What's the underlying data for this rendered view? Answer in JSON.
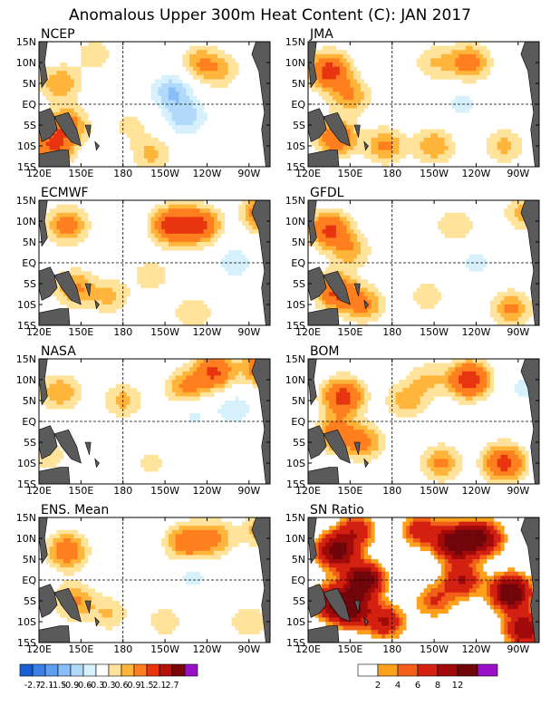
{
  "title": "Anomalous Upper 300m Heat Content (C): JAN 2017",
  "chart_data": {
    "type": "heatmap",
    "title": "Anomalous Upper 300m Heat Content (C): JAN 2017",
    "x_ticks": [
      "120E",
      "150E",
      "180",
      "150W",
      "120W",
      "90W"
    ],
    "y_ticks": [
      "15N",
      "10N",
      "5N",
      "EQ",
      "5S",
      "10S",
      "15S"
    ],
    "x_range_deg_east": [
      120,
      285
    ],
    "y_range_deg_north": [
      -15,
      15
    ],
    "panels": [
      {
        "name": "NCEP",
        "blobs": [
          {
            "lon": 135,
            "lat": 5,
            "value": 0.9
          },
          {
            "lon": 140,
            "lat": -5,
            "value": 1.2
          },
          {
            "lon": 130,
            "lat": -10,
            "value": 1.5
          },
          {
            "lon": 215,
            "lat": 3,
            "value": -0.9
          },
          {
            "lon": 225,
            "lat": -3,
            "value": -0.8
          },
          {
            "lon": 235,
            "lat": 10,
            "value": 0.8
          },
          {
            "lon": 200,
            "lat": -12,
            "value": 0.7
          },
          {
            "lon": 160,
            "lat": 12,
            "value": 0.5
          },
          {
            "lon": 250,
            "lat": 8,
            "value": 0.6
          },
          {
            "lon": 185,
            "lat": -5,
            "value": 0.4
          }
        ]
      },
      {
        "name": "JMA",
        "blobs": [
          {
            "lon": 135,
            "lat": 8,
            "value": 1.8
          },
          {
            "lon": 150,
            "lat": 2,
            "value": 0.9
          },
          {
            "lon": 140,
            "lat": -8,
            "value": 1.5
          },
          {
            "lon": 175,
            "lat": -10,
            "value": 1.0
          },
          {
            "lon": 210,
            "lat": -10,
            "value": 0.9
          },
          {
            "lon": 235,
            "lat": 10,
            "value": 1.2
          },
          {
            "lon": 210,
            "lat": 10,
            "value": 0.6
          },
          {
            "lon": 230,
            "lat": 0,
            "value": -0.4
          },
          {
            "lon": 260,
            "lat": -10,
            "value": 0.7
          }
        ]
      },
      {
        "name": "ECMWF",
        "blobs": [
          {
            "lon": 140,
            "lat": 9,
            "value": 1.2
          },
          {
            "lon": 215,
            "lat": 9,
            "value": 1.8
          },
          {
            "lon": 235,
            "lat": 9,
            "value": 1.6
          },
          {
            "lon": 145,
            "lat": -6,
            "value": 1.0
          },
          {
            "lon": 170,
            "lat": -8,
            "value": 0.7
          },
          {
            "lon": 200,
            "lat": -3,
            "value": 0.5
          },
          {
            "lon": 260,
            "lat": 0,
            "value": -0.5
          },
          {
            "lon": 280,
            "lat": 12,
            "value": 1.5
          },
          {
            "lon": 230,
            "lat": -12,
            "value": 0.6
          }
        ]
      },
      {
        "name": "GFDL",
        "blobs": [
          {
            "lon": 135,
            "lat": 8,
            "value": 1.6
          },
          {
            "lon": 150,
            "lat": 3,
            "value": 0.8
          },
          {
            "lon": 140,
            "lat": -7,
            "value": 1.6
          },
          {
            "lon": 160,
            "lat": -10,
            "value": 1.0
          },
          {
            "lon": 225,
            "lat": 9,
            "value": 0.6
          },
          {
            "lon": 265,
            "lat": -11,
            "value": 1.0
          },
          {
            "lon": 205,
            "lat": -8,
            "value": 0.5
          },
          {
            "lon": 240,
            "lat": 0,
            "value": -0.4
          },
          {
            "lon": 275,
            "lat": 12,
            "value": 0.8
          }
        ]
      },
      {
        "name": "NASA",
        "blobs": [
          {
            "lon": 135,
            "lat": 7,
            "value": 0.9
          },
          {
            "lon": 225,
            "lat": 8,
            "value": 1.0
          },
          {
            "lon": 245,
            "lat": 12,
            "value": 1.6
          },
          {
            "lon": 180,
            "lat": 5,
            "value": 0.7
          },
          {
            "lon": 230,
            "lat": 2,
            "value": -0.4
          },
          {
            "lon": 260,
            "lat": 3,
            "value": -0.5
          },
          {
            "lon": 125,
            "lat": -8,
            "value": 0.6
          },
          {
            "lon": 200,
            "lat": -10,
            "value": 0.4
          },
          {
            "lon": 280,
            "lat": 13,
            "value": 1.5
          }
        ]
      },
      {
        "name": "BOM",
        "blobs": [
          {
            "lon": 145,
            "lat": 6,
            "value": 1.8
          },
          {
            "lon": 140,
            "lat": -3,
            "value": 1.2
          },
          {
            "lon": 160,
            "lat": -5,
            "value": 1.0
          },
          {
            "lon": 235,
            "lat": 10,
            "value": 2.0
          },
          {
            "lon": 260,
            "lat": -10,
            "value": 1.8
          },
          {
            "lon": 215,
            "lat": -10,
            "value": 1.0
          },
          {
            "lon": 190,
            "lat": 5,
            "value": 0.8
          },
          {
            "lon": 205,
            "lat": 10,
            "value": 0.6
          },
          {
            "lon": 275,
            "lat": 8,
            "value": -0.4
          }
        ]
      },
      {
        "name": "ENS. Mean",
        "blobs": [
          {
            "lon": 140,
            "lat": 7,
            "value": 1.3
          },
          {
            "lon": 225,
            "lat": 9,
            "value": 1.3
          },
          {
            "lon": 245,
            "lat": 10,
            "value": 1.0
          },
          {
            "lon": 145,
            "lat": -5,
            "value": 1.0
          },
          {
            "lon": 170,
            "lat": -8,
            "value": 0.6
          },
          {
            "lon": 210,
            "lat": -10,
            "value": 0.5
          },
          {
            "lon": 230,
            "lat": 1,
            "value": -0.4
          },
          {
            "lon": 270,
            "lat": -10,
            "value": 0.6
          },
          {
            "lon": 280,
            "lat": 12,
            "value": 0.9
          }
        ]
      },
      {
        "name": "SN Ratio",
        "blobs": [
          {
            "lon": 140,
            "lat": 7,
            "value": 9
          },
          {
            "lon": 160,
            "lat": 0,
            "value": 10
          },
          {
            "lon": 150,
            "lat": -7,
            "value": 9
          },
          {
            "lon": 135,
            "lat": -5,
            "value": 6
          },
          {
            "lon": 225,
            "lat": 9,
            "value": 10
          },
          {
            "lon": 245,
            "lat": 10,
            "value": 8
          },
          {
            "lon": 265,
            "lat": -3,
            "value": 11
          },
          {
            "lon": 230,
            "lat": 0,
            "value": 6
          },
          {
            "lon": 175,
            "lat": -10,
            "value": 6
          },
          {
            "lon": 210,
            "lat": -5,
            "value": 4
          },
          {
            "lon": 200,
            "lat": 12,
            "value": 5
          },
          {
            "lon": 155,
            "lat": 12,
            "value": 5
          },
          {
            "lon": 275,
            "lat": -12,
            "value": 8
          }
        ]
      }
    ],
    "legend_anomaly": {
      "labels": [
        "-2.7",
        "-2.1",
        "-1.5",
        "-0.9",
        "-0.6",
        "-0.3",
        "0.3",
        "0.6",
        "0.9",
        "1.5",
        "2.1",
        "2.7"
      ],
      "colors": [
        "#1a5fd1",
        "#3a80e6",
        "#5e9ef0",
        "#88bdf7",
        "#b0d9fa",
        "#d6f0fc",
        "#ffffff",
        "#ffe39a",
        "#ffb43a",
        "#ff7f1e",
        "#e8340f",
        "#b3120a",
        "#7a0507",
        "#9a10c8"
      ],
      "thresholds": [
        -2.7,
        -2.1,
        -1.5,
        -0.9,
        -0.6,
        -0.3,
        0.3,
        0.6,
        0.9,
        1.5,
        2.1,
        2.7
      ]
    },
    "legend_sn": {
      "labels": [
        "2",
        "4",
        "6",
        "8",
        "12"
      ],
      "colors": [
        "#ffffff",
        "#ffa01a",
        "#f26018",
        "#d32010",
        "#a00a0a",
        "#70050a",
        "#9a10c8"
      ],
      "thresholds": [
        2,
        3,
        4,
        6,
        8,
        12
      ]
    },
    "colors": {
      "land": "#5a5a5a",
      "frame": "#000000"
    }
  }
}
